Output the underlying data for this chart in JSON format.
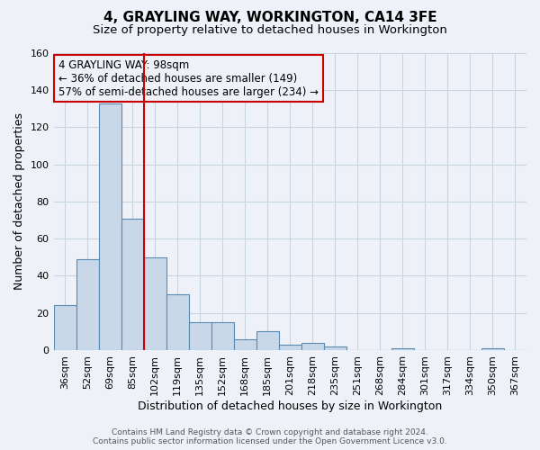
{
  "title": "4, GRAYLING WAY, WORKINGTON, CA14 3FE",
  "subtitle": "Size of property relative to detached houses in Workington",
  "xlabel": "Distribution of detached houses by size in Workington",
  "ylabel": "Number of detached properties",
  "footer_line1": "Contains HM Land Registry data © Crown copyright and database right 2024.",
  "footer_line2": "Contains public sector information licensed under the Open Government Licence v3.0.",
  "annotation_line1": "4 GRAYLING WAY: 98sqm",
  "annotation_line2": "← 36% of detached houses are smaller (149)",
  "annotation_line3": "57% of semi-detached houses are larger (234) →",
  "bar_labels": [
    "36sqm",
    "52sqm",
    "69sqm",
    "85sqm",
    "102sqm",
    "119sqm",
    "135sqm",
    "152sqm",
    "168sqm",
    "185sqm",
    "201sqm",
    "218sqm",
    "235sqm",
    "251sqm",
    "268sqm",
    "284sqm",
    "301sqm",
    "317sqm",
    "334sqm",
    "350sqm",
    "367sqm"
  ],
  "bar_values": [
    24,
    49,
    133,
    71,
    50,
    30,
    15,
    15,
    6,
    10,
    3,
    4,
    2,
    0,
    0,
    1,
    0,
    0,
    0,
    1,
    0
  ],
  "bar_color": "#c8d8e8",
  "bar_edge_color": "#5a8ab0",
  "vline_color": "#cc0000",
  "ylim": [
    0,
    160
  ],
  "yticks": [
    0,
    20,
    40,
    60,
    80,
    100,
    120,
    140,
    160
  ],
  "grid_color": "#c8d4e0",
  "bg_color": "#eef2f8",
  "annotation_box_edge": "#cc0000",
  "title_fontsize": 11,
  "subtitle_fontsize": 9.5,
  "ylabel_fontsize": 9,
  "xlabel_fontsize": 9,
  "tick_fontsize": 8,
  "annotation_fontsize": 8.5,
  "footer_fontsize": 6.5
}
